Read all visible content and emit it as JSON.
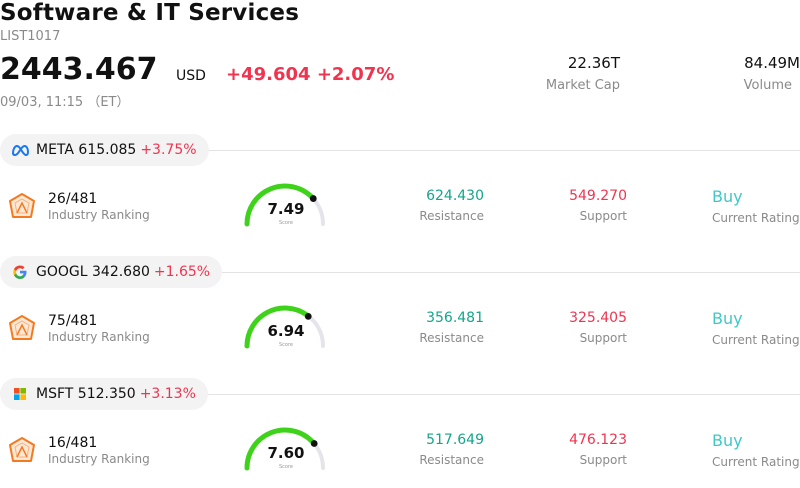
{
  "header": {
    "title": "Software & IT Services",
    "code": "LIST1017",
    "price": "2443.467",
    "currency": "USD",
    "change": "+49.604",
    "change_pct": "+2.07%",
    "time": "09/03, 11:15 （ET）",
    "market_cap_value": "22.36T",
    "market_cap_label": "Market Cap",
    "volume_value": "84.49M",
    "volume_label": "Volume"
  },
  "stocks": [
    {
      "ticker": "META",
      "price": "615.085",
      "pct": "+3.75%",
      "logo_icon": "meta-logo",
      "rank": "26/481",
      "rank_label": "Industry Ranking",
      "score": "7.49",
      "score_value": 7.49,
      "score_label": "Score",
      "resistance": "624.430",
      "resistance_label": "Resistance",
      "support": "549.270",
      "support_label": "Support",
      "rating": "Buy",
      "rating_label": "Current Rating"
    },
    {
      "ticker": "GOOGL",
      "price": "342.680",
      "pct": "+1.65%",
      "logo_icon": "google-logo",
      "rank": "75/481",
      "rank_label": "Industry Ranking",
      "score": "6.94",
      "score_value": 6.94,
      "score_label": "Score",
      "resistance": "356.481",
      "resistance_label": "Resistance",
      "support": "325.405",
      "support_label": "Support",
      "rating": "Buy",
      "rating_label": "Current Rating"
    },
    {
      "ticker": "MSFT",
      "price": "512.350",
      "pct": "+3.13%",
      "logo_icon": "microsoft-logo",
      "rank": "16/481",
      "rank_label": "Industry Ranking",
      "score": "7.60",
      "score_value": 7.6,
      "score_label": "Score",
      "resistance": "517.649",
      "resistance_label": "Resistance",
      "support": "476.123",
      "support_label": "Support",
      "rating": "Buy",
      "rating_label": "Current Rating"
    }
  ],
  "colors": {
    "up": "#f0344f",
    "resistance": "#15a58a",
    "rating": "#3fc8c6",
    "gauge_fill": "#3fd21a",
    "gauge_track": "#e4e4ea",
    "rank_icon": "#f47a20"
  }
}
